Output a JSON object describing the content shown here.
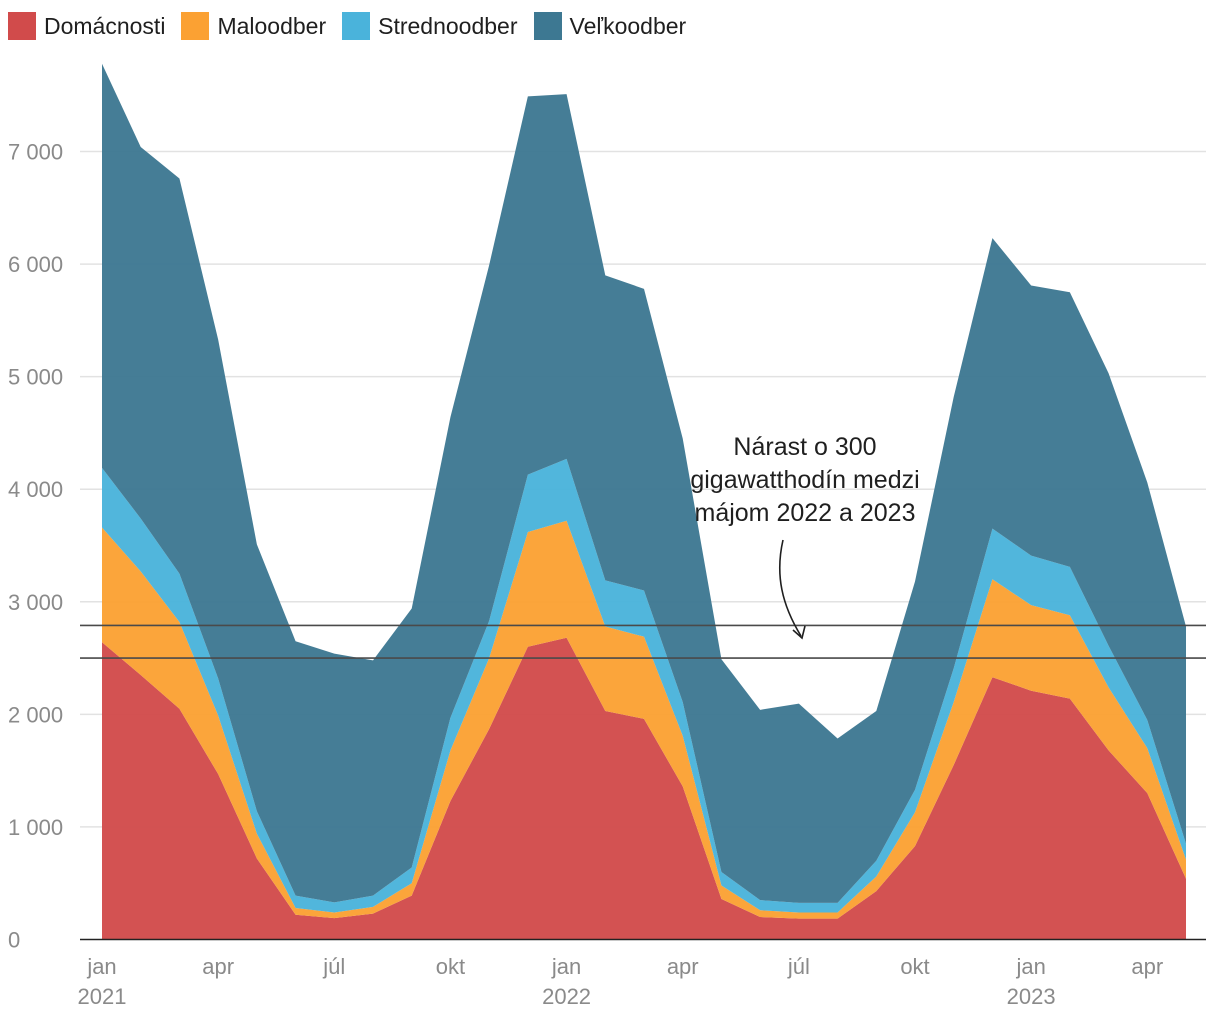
{
  "chart_data": {
    "type": "area",
    "stacked": true,
    "title": "",
    "xlabel": "",
    "ylabel": "",
    "ylim": [
      0,
      7800
    ],
    "yticks": [
      0,
      1000,
      2000,
      3000,
      4000,
      5000,
      6000,
      7000
    ],
    "ytick_labels": [
      "0",
      "1 000",
      "2 000",
      "3 000",
      "4 000",
      "5 000",
      "6 000",
      "7 000"
    ],
    "grid": true,
    "legend_position": "top-left",
    "x_months": [
      "jan 2021",
      "feb 2021",
      "mar 2021",
      "apr 2021",
      "máj 2021",
      "jún 2021",
      "júl 2021",
      "aug 2021",
      "sep 2021",
      "okt 2021",
      "nov 2021",
      "dec 2021",
      "jan 2022",
      "feb 2022",
      "mar 2022",
      "apr 2022",
      "máj 2022",
      "jún 2022",
      "júl 2022",
      "aug 2022",
      "sep 2022",
      "okt 2022",
      "nov 2022",
      "dec 2022",
      "jan 2023",
      "feb 2023",
      "mar 2023",
      "apr 2023",
      "máj 2023"
    ],
    "xtick_labels": [
      {
        "index": 0,
        "month": "jan",
        "year": "2021"
      },
      {
        "index": 3,
        "month": "apr",
        "year": ""
      },
      {
        "index": 6,
        "month": "júl",
        "year": ""
      },
      {
        "index": 9,
        "month": "okt",
        "year": ""
      },
      {
        "index": 12,
        "month": "jan",
        "year": "2022"
      },
      {
        "index": 15,
        "month": "apr",
        "year": ""
      },
      {
        "index": 18,
        "month": "júl",
        "year": ""
      },
      {
        "index": 21,
        "month": "okt",
        "year": ""
      },
      {
        "index": 24,
        "month": "jan",
        "year": "2023"
      },
      {
        "index": 27,
        "month": "apr",
        "year": ""
      }
    ],
    "series": [
      {
        "name": "Domácnosti",
        "color": "#d14b4b",
        "values": [
          2640,
          2350,
          2050,
          1470,
          720,
          220,
          190,
          230,
          390,
          1230,
          1870,
          2600,
          2680,
          2030,
          1960,
          1360,
          360,
          200,
          185,
          185,
          430,
          830,
          1550,
          2330,
          2210,
          2140,
          1680,
          1300,
          540
        ]
      },
      {
        "name": "Maloodber",
        "color": "#fba133",
        "values": [
          1020,
          920,
          770,
          520,
          220,
          60,
          50,
          60,
          110,
          450,
          630,
          1020,
          1040,
          750,
          730,
          450,
          120,
          60,
          55,
          55,
          130,
          300,
          560,
          870,
          760,
          740,
          560,
          400,
          170
        ]
      },
      {
        "name": "Strednoodber",
        "color": "#4ab3db",
        "values": [
          530,
          470,
          430,
          330,
          200,
          110,
          90,
          100,
          140,
          290,
          330,
          510,
          550,
          410,
          410,
          300,
          120,
          90,
          85,
          85,
          140,
          200,
          300,
          450,
          440,
          430,
          370,
          250,
          140
        ]
      },
      {
        "name": "Veľkoodber",
        "color": "#3d7892",
        "values": [
          3590,
          3300,
          3510,
          3010,
          2370,
          2260,
          2210,
          2090,
          2300,
          2670,
          3160,
          3360,
          3240,
          2710,
          2680,
          2340,
          1890,
          1690,
          1770,
          1460,
          1330,
          1850,
          2410,
          2580,
          2400,
          2440,
          2420,
          2110,
          1930
        ]
      }
    ],
    "reference_lines": [
      2790,
      2500
    ],
    "annotation": {
      "lines": [
        "Nárast o 300",
        "gigawatthodín medzi",
        "májom 2022 a 2023"
      ]
    }
  }
}
